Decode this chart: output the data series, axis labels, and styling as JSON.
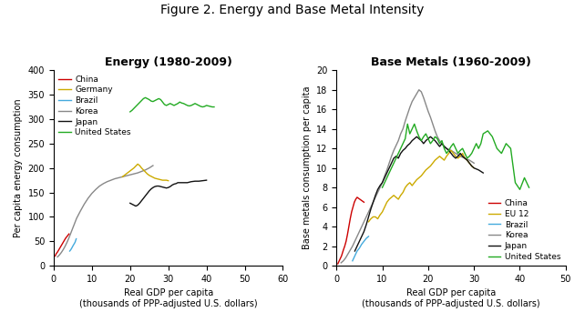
{
  "title": "Figure 2. Energy and Base Metal Intensity",
  "left_title": "Energy (1980-2009)",
  "right_title": "Base Metals (1960-2009)",
  "left_ylabel": "Per capita energy consumption",
  "right_ylabel": "Base metals consumption per capita",
  "xlabel": "Real GDP per capita",
  "xlabel2": "(thousands of PPP-adjusted U.S. dollars)",
  "left_xlim": [
    0,
    60
  ],
  "left_ylim": [
    0,
    400
  ],
  "right_xlim": [
    0,
    50
  ],
  "right_ylim": [
    0,
    20
  ],
  "left_xticks": [
    0,
    10,
    20,
    30,
    40,
    50,
    60
  ],
  "left_yticks": [
    0,
    50,
    100,
    150,
    200,
    250,
    300,
    350,
    400
  ],
  "right_xticks": [
    0,
    10,
    20,
    30,
    40,
    50
  ],
  "right_yticks": [
    0,
    2,
    4,
    6,
    8,
    10,
    12,
    14,
    16,
    18,
    20
  ],
  "background_color": "#ffffff",
  "energy": {
    "China": {
      "color": "#cc0000",
      "gdp": [
        0.4,
        0.7,
        1.0,
        1.3,
        1.6,
        1.9,
        2.2,
        2.5,
        2.8,
        3.1,
        3.5,
        4.0
      ],
      "val": [
        20,
        25,
        28,
        32,
        36,
        40,
        44,
        48,
        52,
        56,
        60,
        65
      ]
    },
    "Germany": {
      "color": "#ccaa00",
      "gdp": [
        18.0,
        18.5,
        19.0,
        19.5,
        20.0,
        20.5,
        21.0,
        21.5,
        22.0,
        22.5,
        23.0,
        23.5,
        24.0,
        24.5,
        25.0,
        25.5,
        26.0,
        26.5,
        27.0,
        27.5,
        28.0,
        28.5,
        29.0,
        29.5,
        30.0
      ],
      "val": [
        182,
        185,
        188,
        191,
        194,
        197,
        200,
        204,
        208,
        205,
        200,
        196,
        192,
        188,
        185,
        183,
        181,
        179,
        178,
        177,
        176,
        175,
        175,
        175,
        174
      ]
    },
    "Brazil": {
      "color": "#44aadd",
      "gdp": [
        4.2,
        4.5,
        4.8,
        5.0,
        5.3,
        5.6,
        5.9
      ],
      "val": [
        30,
        33,
        37,
        40,
        44,
        48,
        55
      ]
    },
    "Korea": {
      "color": "#888888",
      "gdp": [
        1.0,
        1.5,
        2.0,
        2.5,
        3.0,
        3.5,
        4.0,
        4.5,
        5.0,
        5.5,
        6.0,
        7.0,
        8.0,
        9.0,
        10.0,
        11.0,
        12.0,
        13.0,
        14.0,
        15.0,
        16.0,
        17.0,
        18.0,
        19.0,
        20.0,
        21.0,
        22.0,
        23.0,
        24.0,
        25.0,
        26.0
      ],
      "val": [
        18,
        22,
        27,
        33,
        40,
        48,
        57,
        67,
        77,
        87,
        97,
        112,
        126,
        138,
        148,
        156,
        163,
        168,
        172,
        175,
        178,
        180,
        182,
        184,
        186,
        188,
        190,
        193,
        196,
        200,
        205
      ]
    },
    "Japan": {
      "color": "#111111",
      "gdp": [
        20.0,
        20.5,
        21.0,
        21.5,
        22.0,
        22.5,
        23.0,
        23.5,
        24.0,
        24.5,
        25.0,
        25.5,
        26.0,
        26.5,
        27.0,
        27.5,
        28.0,
        28.5,
        29.0,
        29.5,
        30.0,
        30.5,
        31.0,
        31.5,
        32.0,
        32.5,
        33.0,
        33.5,
        34.0,
        35.0,
        36.0,
        37.0,
        38.0,
        39.0,
        40.0
      ],
      "val": [
        128,
        126,
        124,
        122,
        124,
        128,
        133,
        138,
        143,
        148,
        153,
        157,
        160,
        162,
        163,
        163,
        162,
        161,
        160,
        159,
        160,
        162,
        165,
        167,
        168,
        170,
        170,
        170,
        170,
        170,
        172,
        173,
        173,
        174,
        175
      ]
    },
    "United States": {
      "color": "#22aa22",
      "gdp": [
        20.0,
        20.5,
        21.0,
        21.5,
        22.0,
        22.5,
        23.0,
        23.5,
        24.0,
        24.5,
        25.0,
        25.5,
        26.0,
        26.5,
        27.0,
        27.5,
        28.0,
        28.5,
        29.0,
        29.5,
        30.0,
        30.5,
        31.0,
        31.5,
        32.0,
        32.5,
        33.0,
        33.5,
        34.0,
        34.5,
        35.0,
        35.5,
        36.0,
        36.5,
        37.0,
        37.5,
        38.0,
        38.5,
        39.0,
        39.5,
        40.0,
        40.5,
        41.0,
        41.5,
        42.0
      ],
      "val": [
        315,
        318,
        322,
        326,
        330,
        334,
        338,
        342,
        344,
        342,
        340,
        337,
        336,
        338,
        340,
        342,
        340,
        335,
        330,
        328,
        330,
        332,
        330,
        328,
        330,
        332,
        335,
        333,
        332,
        330,
        328,
        327,
        328,
        330,
        332,
        330,
        328,
        326,
        325,
        326,
        328,
        327,
        326,
        325,
        325
      ]
    }
  },
  "metals": {
    "China": {
      "color": "#cc0000",
      "gdp": [
        0.3,
        0.5,
        0.7,
        0.9,
        1.1,
        1.3,
        1.5,
        1.8,
        2.1,
        2.4,
        2.7,
        3.0,
        3.3,
        3.6,
        3.9,
        4.2,
        4.5,
        4.8,
        5.1,
        5.4,
        5.7,
        6.0
      ],
      "val": [
        0.2,
        0.4,
        0.6,
        0.8,
        1.0,
        1.3,
        1.6,
        2.0,
        2.5,
        3.2,
        4.0,
        4.8,
        5.5,
        6.0,
        6.5,
        6.8,
        7.0,
        6.9,
        6.8,
        6.7,
        6.6,
        6.5
      ]
    },
    "EU12": {
      "color": "#ccaa00",
      "gdp": [
        7.0,
        7.5,
        8.0,
        8.5,
        9.0,
        9.5,
        10.0,
        10.5,
        11.0,
        11.5,
        12.0,
        12.5,
        13.0,
        13.5,
        14.0,
        14.5,
        15.0,
        15.5,
        16.0,
        16.5,
        17.0,
        17.5,
        18.0,
        18.5,
        19.0,
        19.5,
        20.0,
        20.5,
        21.0,
        21.5,
        22.0,
        22.5,
        23.0,
        23.5,
        24.0,
        24.5,
        25.0,
        25.5,
        26.0,
        26.5,
        27.0,
        27.5,
        28.0,
        28.5,
        29.0,
        29.5,
        30.0
      ],
      "val": [
        4.5,
        4.8,
        5.0,
        5.0,
        4.8,
        5.2,
        5.5,
        6.0,
        6.5,
        6.8,
        7.0,
        7.2,
        7.0,
        6.8,
        7.2,
        7.5,
        8.0,
        8.3,
        8.5,
        8.2,
        8.5,
        8.8,
        9.0,
        9.2,
        9.5,
        9.8,
        10.0,
        10.2,
        10.5,
        10.8,
        11.0,
        11.2,
        11.0,
        10.8,
        11.2,
        11.5,
        11.8,
        11.5,
        11.2,
        11.0,
        11.2,
        11.5,
        11.0,
        10.8,
        10.5,
        10.2,
        10.0
      ]
    },
    "Brazil": {
      "color": "#44aadd",
      "gdp": [
        3.5,
        4.0,
        4.5,
        5.0,
        5.5,
        6.0,
        6.5,
        7.0
      ],
      "val": [
        0.5,
        1.0,
        1.5,
        1.8,
        2.2,
        2.5,
        2.8,
        3.0
      ]
    },
    "Korea": {
      "color": "#888888",
      "gdp": [
        1.0,
        1.5,
        2.0,
        2.5,
        3.0,
        3.5,
        4.0,
        4.5,
        5.0,
        5.5,
        6.0,
        6.5,
        7.0,
        7.5,
        8.0,
        8.5,
        9.0,
        9.5,
        10.0,
        10.5,
        11.0,
        11.5,
        12.0,
        12.5,
        13.0,
        13.5,
        14.0,
        14.5,
        15.0,
        15.5,
        16.0,
        16.5,
        17.0,
        17.5,
        18.0,
        18.5,
        19.0,
        19.5,
        20.0,
        20.5,
        21.0,
        21.5,
        22.0,
        22.5,
        23.0,
        24.0,
        25.0,
        26.0,
        27.0,
        28.0,
        29.0,
        30.0
      ],
      "val": [
        0.3,
        0.5,
        0.8,
        1.2,
        1.6,
        2.0,
        2.5,
        3.0,
        3.5,
        4.0,
        4.5,
        5.0,
        5.5,
        6.0,
        6.5,
        7.0,
        7.5,
        8.0,
        8.5,
        9.2,
        9.8,
        10.5,
        11.2,
        11.8,
        12.3,
        12.8,
        13.5,
        14.0,
        14.8,
        15.5,
        16.2,
        16.8,
        17.2,
        17.6,
        18.0,
        17.8,
        17.2,
        16.5,
        15.8,
        15.2,
        14.5,
        13.8,
        13.2,
        12.8,
        12.5,
        12.0,
        11.8,
        11.5,
        11.2,
        11.0,
        10.8,
        10.5
      ]
    },
    "Japan": {
      "color": "#111111",
      "gdp": [
        4.0,
        4.5,
        5.0,
        5.5,
        6.0,
        6.5,
        7.0,
        7.5,
        8.0,
        8.5,
        9.0,
        9.5,
        10.0,
        10.5,
        11.0,
        11.5,
        12.0,
        12.5,
        13.0,
        13.5,
        14.0,
        14.5,
        15.0,
        15.5,
        16.0,
        16.5,
        17.0,
        17.5,
        18.0,
        18.5,
        19.0,
        19.5,
        20.0,
        20.5,
        21.0,
        21.5,
        22.0,
        22.5,
        23.0,
        23.5,
        24.0,
        24.5,
        25.0,
        25.5,
        26.0,
        26.5,
        27.0,
        27.5,
        28.0,
        28.5,
        29.0,
        29.5,
        30.0,
        31.0,
        32.0
      ],
      "val": [
        1.5,
        2.0,
        2.5,
        3.0,
        3.5,
        4.2,
        5.0,
        5.8,
        6.5,
        7.2,
        7.8,
        8.2,
        8.5,
        9.0,
        9.5,
        10.0,
        10.5,
        11.0,
        11.2,
        11.0,
        11.5,
        11.8,
        12.0,
        12.3,
        12.5,
        12.8,
        13.0,
        13.2,
        13.0,
        12.8,
        12.5,
        12.8,
        13.0,
        13.2,
        13.0,
        12.8,
        12.5,
        12.2,
        12.5,
        12.2,
        12.0,
        11.8,
        11.5,
        11.2,
        11.0,
        11.2,
        11.5,
        11.2,
        11.0,
        10.8,
        10.5,
        10.2,
        10.0,
        9.8,
        9.5
      ]
    },
    "United States": {
      "color": "#22aa22",
      "gdp": [
        10.0,
        10.5,
        11.0,
        11.5,
        12.0,
        12.5,
        13.0,
        13.5,
        14.0,
        14.5,
        15.0,
        15.5,
        16.0,
        16.5,
        17.0,
        17.5,
        18.0,
        18.5,
        19.0,
        19.5,
        20.0,
        20.5,
        21.0,
        21.5,
        22.0,
        22.5,
        23.0,
        23.5,
        24.0,
        24.5,
        25.0,
        25.5,
        26.0,
        26.5,
        27.0,
        27.5,
        28.0,
        28.5,
        29.0,
        29.5,
        30.0,
        30.5,
        31.0,
        31.5,
        32.0,
        33.0,
        34.0,
        35.0,
        36.0,
        37.0,
        38.0,
        39.0,
        40.0,
        41.0,
        42.0
      ],
      "val": [
        8.0,
        8.5,
        9.0,
        9.5,
        10.0,
        10.5,
        11.0,
        11.5,
        12.0,
        12.5,
        13.0,
        14.5,
        13.5,
        14.0,
        14.5,
        13.8,
        13.2,
        12.8,
        13.2,
        13.5,
        13.0,
        12.5,
        12.8,
        13.2,
        13.0,
        12.5,
        12.8,
        12.0,
        11.5,
        11.8,
        12.2,
        12.5,
        12.0,
        11.5,
        11.8,
        12.0,
        11.5,
        11.0,
        11.2,
        11.5,
        12.0,
        12.5,
        12.0,
        12.5,
        13.5,
        13.8,
        13.2,
        12.0,
        11.5,
        12.5,
        12.0,
        8.5,
        7.8,
        9.0,
        8.0
      ]
    }
  }
}
